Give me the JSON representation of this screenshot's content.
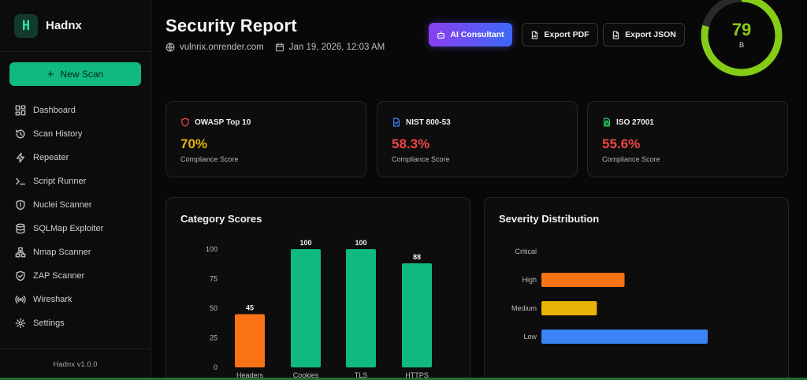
{
  "brand": {
    "name": "Hadnx",
    "logo_letter": "H"
  },
  "sidebar": {
    "new_scan_label": "New Scan",
    "items": [
      {
        "label": "Dashboard",
        "icon": "dashboard-icon"
      },
      {
        "label": "Scan History",
        "icon": "history-icon"
      },
      {
        "label": "Repeater",
        "icon": "lightning-icon"
      },
      {
        "label": "Script Runner",
        "icon": "terminal-icon"
      },
      {
        "label": "Nuclei Scanner",
        "icon": "shield-icon"
      },
      {
        "label": "SQLMap Exploiter",
        "icon": "database-icon"
      },
      {
        "label": "Nmap Scanner",
        "icon": "network-icon"
      },
      {
        "label": "ZAP Scanner",
        "icon": "shield-check-icon"
      },
      {
        "label": "Wireshark",
        "icon": "broadcast-icon"
      },
      {
        "label": "Settings",
        "icon": "gear-icon"
      }
    ],
    "version": "Hadnx v1.0.0"
  },
  "header": {
    "title": "Security Report",
    "domain": "vulnrix.onrender.com",
    "datetime": "Jan 19, 2026, 12:03 AM",
    "buttons": {
      "ai": "AI Consultant",
      "pdf": "Export PDF",
      "json": "Export JSON"
    }
  },
  "score": {
    "value": 79,
    "max": 100,
    "grade": "B",
    "color": "#84cc16"
  },
  "compliance": [
    {
      "name": "OWASP Top 10",
      "value": "70%",
      "label": "Compliance Score",
      "color": "#eab308",
      "icon": "shield-icon"
    },
    {
      "name": "NIST 800-53",
      "value": "58.3%",
      "label": "Compliance Score",
      "color": "#ef4444",
      "icon": "document-icon"
    },
    {
      "name": "ISO 27001",
      "value": "55.6%",
      "label": "Compliance Score",
      "color": "#ef4444",
      "icon": "file-lock-icon"
    }
  ],
  "category_scores": {
    "title": "Category Scores",
    "chart_data": {
      "type": "bar",
      "categories": [
        "Headers",
        "Cookies",
        "TLS",
        "HTTPS"
      ],
      "values": [
        45,
        100,
        100,
        88
      ],
      "colors": [
        "#f97316",
        "#10b981",
        "#10b981",
        "#10b981"
      ],
      "yticks": [
        0,
        25,
        50,
        75,
        100
      ],
      "ylim": [
        0,
        100
      ]
    }
  },
  "severity": {
    "title": "Severity Distribution",
    "chart_data": {
      "type": "bar",
      "orientation": "horizontal",
      "categories": [
        "Critical",
        "High",
        "Medium",
        "Low"
      ],
      "values": [
        0,
        3,
        2,
        6
      ],
      "colors": [
        "#dc2626",
        "#f97316",
        "#eab308",
        "#3b82f6"
      ]
    }
  }
}
